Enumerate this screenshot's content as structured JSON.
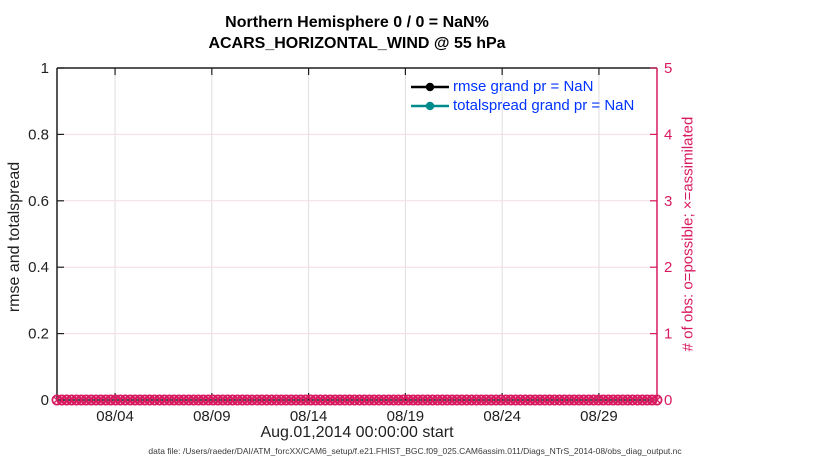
{
  "title": {
    "line1": "Northern Hemisphere 0 / 0 = NaN%",
    "line2": "ACARS_HORIZONTAL_WIND @ 55 hPa"
  },
  "axes": {
    "left": {
      "label": "rmse and totalspread",
      "tick_labels": [
        "0",
        "0.2",
        "0.4",
        "0.6",
        "0.8",
        "1"
      ],
      "tick_values": [
        0,
        0.2,
        0.4,
        0.6,
        0.8,
        1
      ],
      "range": [
        0,
        1
      ],
      "color": "#1f1f1f"
    },
    "right": {
      "label": "# of obs: o=possible; ×=assimilated",
      "tick_labels": [
        "0",
        "1",
        "2",
        "3",
        "4",
        "5"
      ],
      "tick_values": [
        0,
        1,
        2,
        3,
        4,
        5
      ],
      "range": [
        0,
        5
      ],
      "color": "#d81b60"
    },
    "x": {
      "label": "Aug.01,2014 00:00:00 start",
      "tick_labels": [
        "08/04",
        "08/09",
        "08/14",
        "08/19",
        "08/24",
        "08/29"
      ],
      "tick_days": [
        3,
        8,
        13,
        18,
        23,
        28
      ],
      "range_days": [
        0,
        31
      ],
      "color": "#1f1f1f"
    }
  },
  "legend": {
    "text_color": "#0033ff",
    "items": [
      {
        "label": "rmse grand pr = NaN",
        "color": "#000000",
        "marker": "filled-circle"
      },
      {
        "label": "totalspread grand pr = NaN",
        "color": "#008b8b",
        "marker": "filled-circle"
      }
    ]
  },
  "obs_markers": {
    "color": "#d81b60",
    "count": 124,
    "value": 0,
    "glyphs": "o and ×"
  },
  "grid": {
    "vertical_color": "#dedede",
    "horizontal_color": "#f6dbe6"
  },
  "caption": "data file: /Users/raeder/DAI/ATM_forcXX/CAM6_setup/f.e21.FHIST_BGC.f09_025.CAM6assim.011/Diags_NTrS_2014-08/obs_diag_output.nc",
  "chart_data": {
    "type": "line",
    "title": "Northern Hemisphere 0 / 0 = NaN%",
    "subtitle": "ACARS_HORIZONTAL_WIND @ 55 hPa",
    "xlabel": "Aug.01,2014 00:00:00 start",
    "ylabel": "rmse and totalspread",
    "ylabel_right": "# of obs: o=possible; ×=assimilated",
    "x_tick_labels": [
      "08/04",
      "08/09",
      "08/14",
      "08/19",
      "08/24",
      "08/29"
    ],
    "xlim_days_from_start": [
      0,
      31
    ],
    "ylim": [
      0,
      1
    ],
    "ylim_right": [
      0,
      5
    ],
    "grid": true,
    "legend_position": "top-right-inside",
    "series": [
      {
        "name": "rmse grand pr = NaN",
        "type": "line",
        "axis": "left",
        "values": null,
        "note": "all NaN - nothing plotted",
        "color": "#000000"
      },
      {
        "name": "totalspread grand pr = NaN",
        "type": "line",
        "axis": "left",
        "values": null,
        "note": "all NaN - nothing plotted",
        "color": "#008b8b"
      },
      {
        "name": "possible obs (o)",
        "type": "scatter",
        "axis": "right",
        "constant_value": 0,
        "n_points": 124,
        "color": "#d81b60"
      },
      {
        "name": "assimilated obs (×)",
        "type": "scatter",
        "axis": "right",
        "constant_value": 0,
        "n_points": 124,
        "color": "#d81b60"
      }
    ]
  }
}
